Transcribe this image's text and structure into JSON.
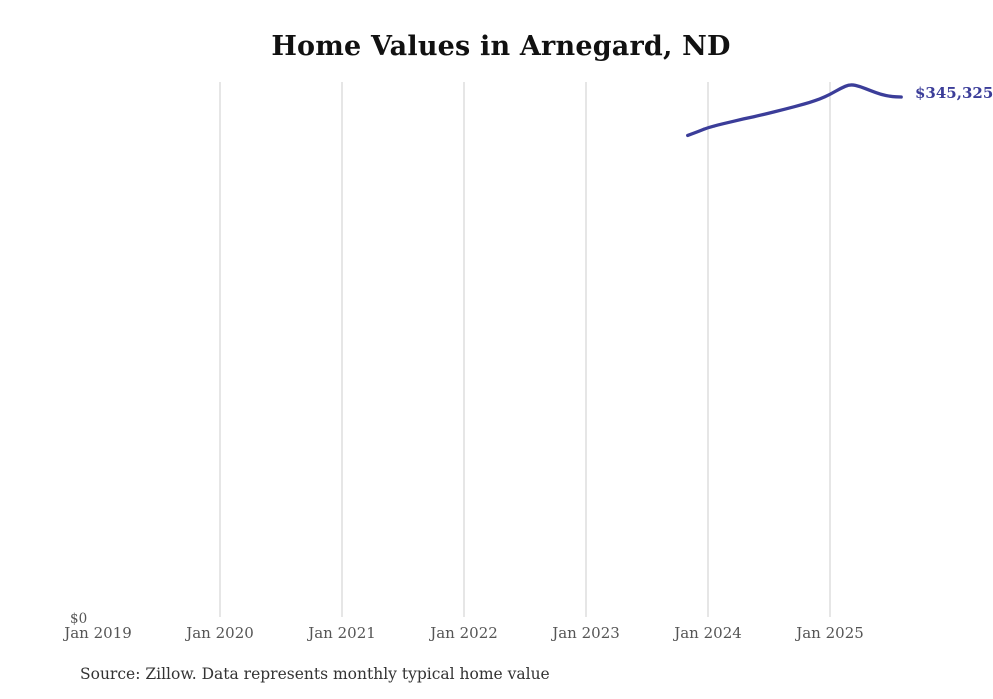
{
  "header": {
    "title": "Home Values in Arnegard, ND"
  },
  "footer": {
    "source_note": "Source: Zillow. Data represents monthly typical home value"
  },
  "colors": {
    "line": "#3b3d99",
    "end_label": "#3b3d99",
    "gridline": "#cdcdcd",
    "axis_text": "#555555",
    "title_text": "#111111",
    "source_text": "#333333",
    "background": "#ffffff"
  },
  "chart_data": {
    "type": "line",
    "title": "Home Values in Arnegard, ND",
    "xlabel": "",
    "ylabel": "",
    "x_tick_labels": [
      "Jan 2019",
      "Jan 2020",
      "Jan 2021",
      "Jan 2022",
      "Jan 2023",
      "Jan 2024",
      "Jan 2025"
    ],
    "y_tick_labels": [
      "$0"
    ],
    "ylim": [
      0,
      355000
    ],
    "grid": "vertical-only",
    "legend": "none",
    "end_label": "$345,325",
    "series": [
      {
        "name": "Monthly typical home value",
        "x": [
          "Nov 2023",
          "Dec 2023",
          "Jan 2024",
          "Feb 2024",
          "Mar 2024",
          "Apr 2024",
          "May 2024",
          "Jun 2024",
          "Jul 2024",
          "Aug 2024",
          "Sep 2024",
          "Oct 2024",
          "Nov 2024",
          "Dec 2024",
          "Jan 2025",
          "Feb 2025",
          "Mar 2025",
          "Apr 2025",
          "May 2025",
          "Jun 2025",
          "Jul 2025",
          "Aug 2025"
        ],
        "values": [
          319800,
          322300,
          325000,
          326800,
          328400,
          330000,
          331500,
          333000,
          334600,
          336300,
          338000,
          339800,
          341700,
          344000,
          347000,
          351000,
          353900,
          352200,
          349500,
          347000,
          345600,
          345325
        ]
      }
    ]
  }
}
